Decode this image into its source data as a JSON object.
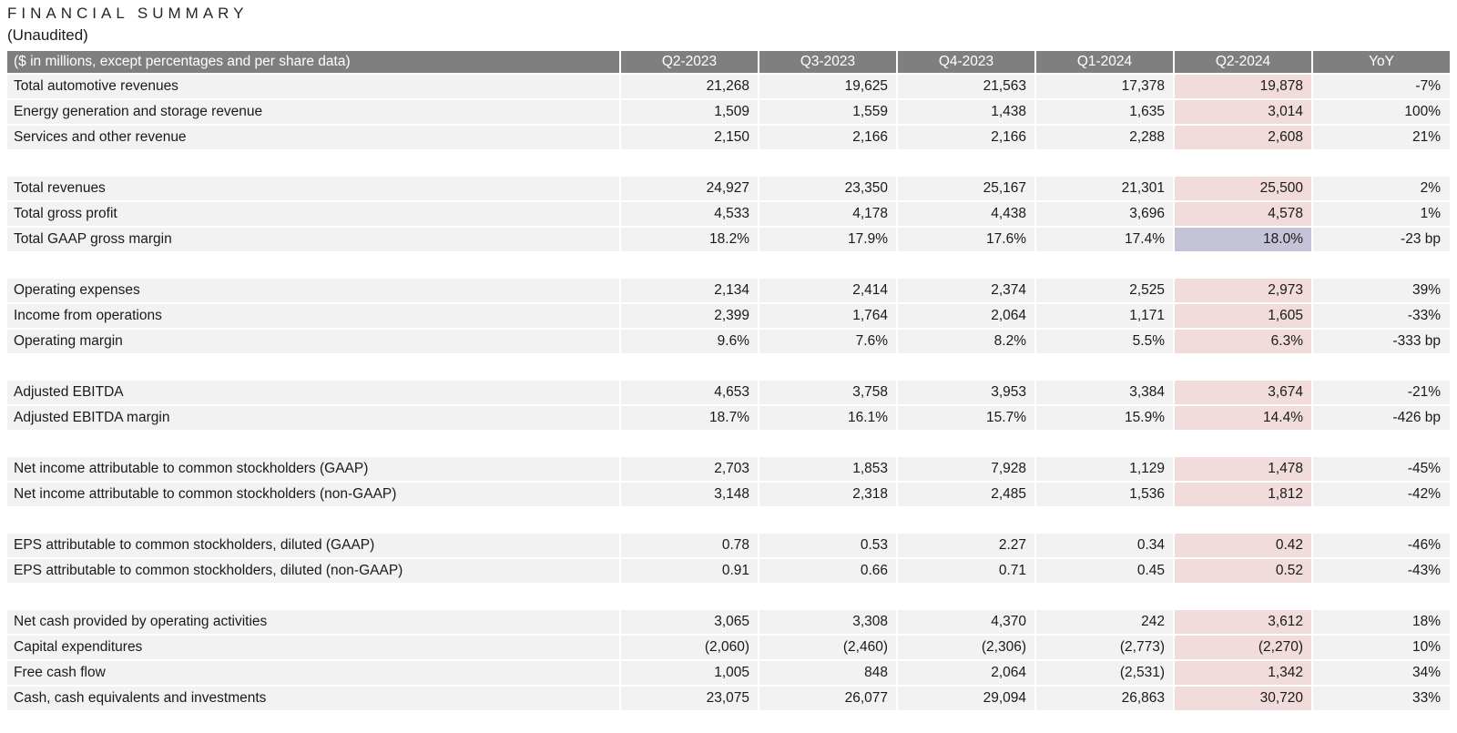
{
  "page": {
    "title": "FINANCIAL SUMMARY",
    "subtitle": "(Unaudited)"
  },
  "colors": {
    "header_bg": "#7f7f7f",
    "header_text": "#ffffff",
    "row_bg": "#f2f2f2",
    "text": "#1a1a1a",
    "highlight_pink": "#f2dcdb",
    "highlight_lavender": "#c5c3d8"
  },
  "table": {
    "header": {
      "label": "($ in millions, except percentages and per share data)",
      "columns": [
        "Q2-2023",
        "Q3-2023",
        "Q4-2023",
        "Q1-2024",
        "Q2-2024",
        "YoY"
      ]
    },
    "rows": [
      {
        "type": "data",
        "label": "Total automotive revenues",
        "values": [
          "21,268",
          "19,625",
          "21,563",
          "17,378",
          "19,878"
        ],
        "yoy": "-7%",
        "q2_highlight": "pink"
      },
      {
        "type": "data",
        "label": "Energy generation and storage revenue",
        "values": [
          "1,509",
          "1,559",
          "1,438",
          "1,635",
          "3,014"
        ],
        "yoy": "100%",
        "q2_highlight": "pink"
      },
      {
        "type": "data",
        "label": "Services and other revenue",
        "values": [
          "2,150",
          "2,166",
          "2,166",
          "2,288",
          "2,608"
        ],
        "yoy": "21%",
        "q2_highlight": "pink"
      },
      {
        "type": "gap"
      },
      {
        "type": "data",
        "label": "Total revenues",
        "values": [
          "24,927",
          "23,350",
          "25,167",
          "21,301",
          "25,500"
        ],
        "yoy": "2%",
        "q2_highlight": "pink"
      },
      {
        "type": "data",
        "label": "Total gross profit",
        "values": [
          "4,533",
          "4,178",
          "4,438",
          "3,696",
          "4,578"
        ],
        "yoy": "1%",
        "q2_highlight": "pink"
      },
      {
        "type": "data",
        "label": "Total GAAP gross margin",
        "values": [
          "18.2%",
          "17.9%",
          "17.6%",
          "17.4%",
          "18.0%"
        ],
        "yoy": "-23 bp",
        "q2_highlight": "lavender"
      },
      {
        "type": "gap"
      },
      {
        "type": "data",
        "label": "Operating expenses",
        "values": [
          "2,134",
          "2,414",
          "2,374",
          "2,525",
          "2,973"
        ],
        "yoy": "39%",
        "q2_highlight": "pink"
      },
      {
        "type": "data",
        "label": "Income from operations",
        "values": [
          "2,399",
          "1,764",
          "2,064",
          "1,171",
          "1,605"
        ],
        "yoy": "-33%",
        "q2_highlight": "pink"
      },
      {
        "type": "data",
        "label": "Operating margin",
        "values": [
          "9.6%",
          "7.6%",
          "8.2%",
          "5.5%",
          "6.3%"
        ],
        "yoy": "-333 bp",
        "q2_highlight": "pink"
      },
      {
        "type": "gap"
      },
      {
        "type": "data",
        "label": "Adjusted EBITDA",
        "values": [
          "4,653",
          "3,758",
          "3,953",
          "3,384",
          "3,674"
        ],
        "yoy": "-21%",
        "q2_highlight": "pink"
      },
      {
        "type": "data",
        "label": "Adjusted EBITDA margin",
        "values": [
          "18.7%",
          "16.1%",
          "15.7%",
          "15.9%",
          "14.4%"
        ],
        "yoy": "-426 bp",
        "q2_highlight": "pink"
      },
      {
        "type": "gap"
      },
      {
        "type": "data",
        "label": "Net income attributable to common stockholders (GAAP)",
        "values": [
          "2,703",
          "1,853",
          "7,928",
          "1,129",
          "1,478"
        ],
        "yoy": "-45%",
        "q2_highlight": "pink"
      },
      {
        "type": "data",
        "label": "Net income attributable to common stockholders (non-GAAP)",
        "values": [
          "3,148",
          "2,318",
          "2,485",
          "1,536",
          "1,812"
        ],
        "yoy": "-42%",
        "q2_highlight": "pink"
      },
      {
        "type": "gap"
      },
      {
        "type": "data",
        "label": "EPS attributable to common stockholders, diluted (GAAP)",
        "values": [
          "0.78",
          "0.53",
          "2.27",
          "0.34",
          "0.42"
        ],
        "yoy": "-46%",
        "q2_highlight": "pink"
      },
      {
        "type": "data",
        "label": "EPS attributable to common stockholders, diluted (non-GAAP)",
        "values": [
          "0.91",
          "0.66",
          "0.71",
          "0.45",
          "0.52"
        ],
        "yoy": "-43%",
        "q2_highlight": "pink"
      },
      {
        "type": "gap"
      },
      {
        "type": "data",
        "label": "Net cash provided by operating activities",
        "values": [
          "3,065",
          "3,308",
          "4,370",
          "242",
          "3,612"
        ],
        "yoy": "18%",
        "q2_highlight": "pink"
      },
      {
        "type": "data",
        "label": "Capital expenditures",
        "values": [
          "(2,060)",
          "(2,460)",
          "(2,306)",
          "(2,773)",
          "(2,270)"
        ],
        "yoy": "10%",
        "q2_highlight": "pink"
      },
      {
        "type": "data",
        "label": "Free cash flow",
        "values": [
          "1,005",
          "848",
          "2,064",
          "(2,531)",
          "1,342"
        ],
        "yoy": "34%",
        "q2_highlight": "pink"
      },
      {
        "type": "data",
        "label": "Cash, cash equivalents and investments",
        "values": [
          "23,075",
          "26,077",
          "29,094",
          "26,863",
          "30,720"
        ],
        "yoy": "33%",
        "q2_highlight": "pink"
      }
    ]
  }
}
